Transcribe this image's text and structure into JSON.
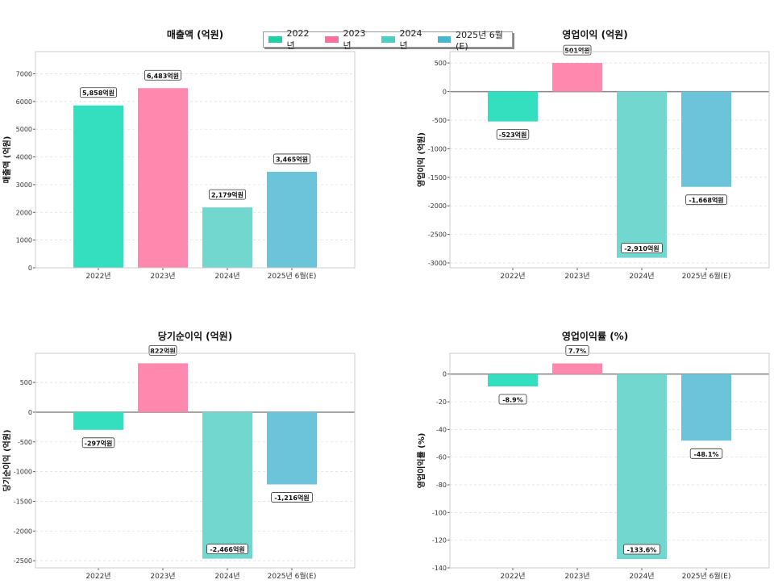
{
  "legend": [
    {
      "label": "2022년",
      "color": "#1ed0a6"
    },
    {
      "label": "2023년",
      "color": "#ff6f9a"
    },
    {
      "label": "2024년",
      "color": "#4ecdc4"
    },
    {
      "label": "2025년 6월(E)",
      "color": "#45b7d1"
    }
  ],
  "bar_colors": [
    "#33dfbf",
    "#ff88ae",
    "#72d7cf",
    "#6cc4da"
  ],
  "chart_data": [
    {
      "type": "bar",
      "title": "매출액 (억원)",
      "ylabel": "매출액 (억원)",
      "categories": [
        "2022년",
        "2023년",
        "2024년",
        "2025년 6월(E)"
      ],
      "values": [
        5858,
        6483,
        2179,
        3465
      ],
      "labels": [
        "5,858억원",
        "6,483억원",
        "2,179억원",
        "3,465억원"
      ],
      "ylim": [
        0,
        7800
      ],
      "yticks": [
        0,
        1000,
        2000,
        3000,
        4000,
        5000,
        6000,
        7000
      ],
      "grid": true
    },
    {
      "type": "bar",
      "title": "영업이익 (억원)",
      "ylabel": "영업이익 (억원)",
      "categories": [
        "2022년",
        "2023년",
        "2024년",
        "2025년 6월(E)"
      ],
      "values": [
        -523,
        501,
        -2910,
        -1668
      ],
      "labels": [
        "-523억원",
        "501억원",
        "-2,910억원",
        "-1,668억원"
      ],
      "ylim": [
        -3085,
        700
      ],
      "yticks": [
        -3000,
        -2500,
        -2000,
        -1500,
        -1000,
        -500,
        0,
        500
      ],
      "grid": true
    },
    {
      "type": "bar",
      "title": "당기순이익 (억원)",
      "ylabel": "당기순이익 (억원)",
      "categories": [
        "2022년",
        "2023년",
        "2024년",
        "2025년 6월(E)"
      ],
      "values": [
        -297,
        822,
        -2466,
        -1216
      ],
      "labels": [
        "-297억원",
        "822억원",
        "-2,466억원",
        "-1,216억원"
      ],
      "ylim": [
        -2620,
        990
      ],
      "yticks": [
        -2500,
        -2000,
        -1500,
        -1000,
        -500,
        0,
        500
      ],
      "grid": true
    },
    {
      "type": "bar",
      "title": "영업이익률 (%)",
      "ylabel": "영업이익률 (%)",
      "categories": [
        "2022년",
        "2023년",
        "2024년",
        "2025년 6월(E)"
      ],
      "values": [
        -8.9,
        7.7,
        -133.6,
        -48.1
      ],
      "labels": [
        "-8.9%",
        "7.7%",
        "-133.6%",
        "-48.1%"
      ],
      "ylim": [
        -140,
        15
      ],
      "yticks": [
        -140,
        -120,
        -100,
        -80,
        -60,
        -40,
        -20,
        0
      ],
      "grid": true
    }
  ]
}
